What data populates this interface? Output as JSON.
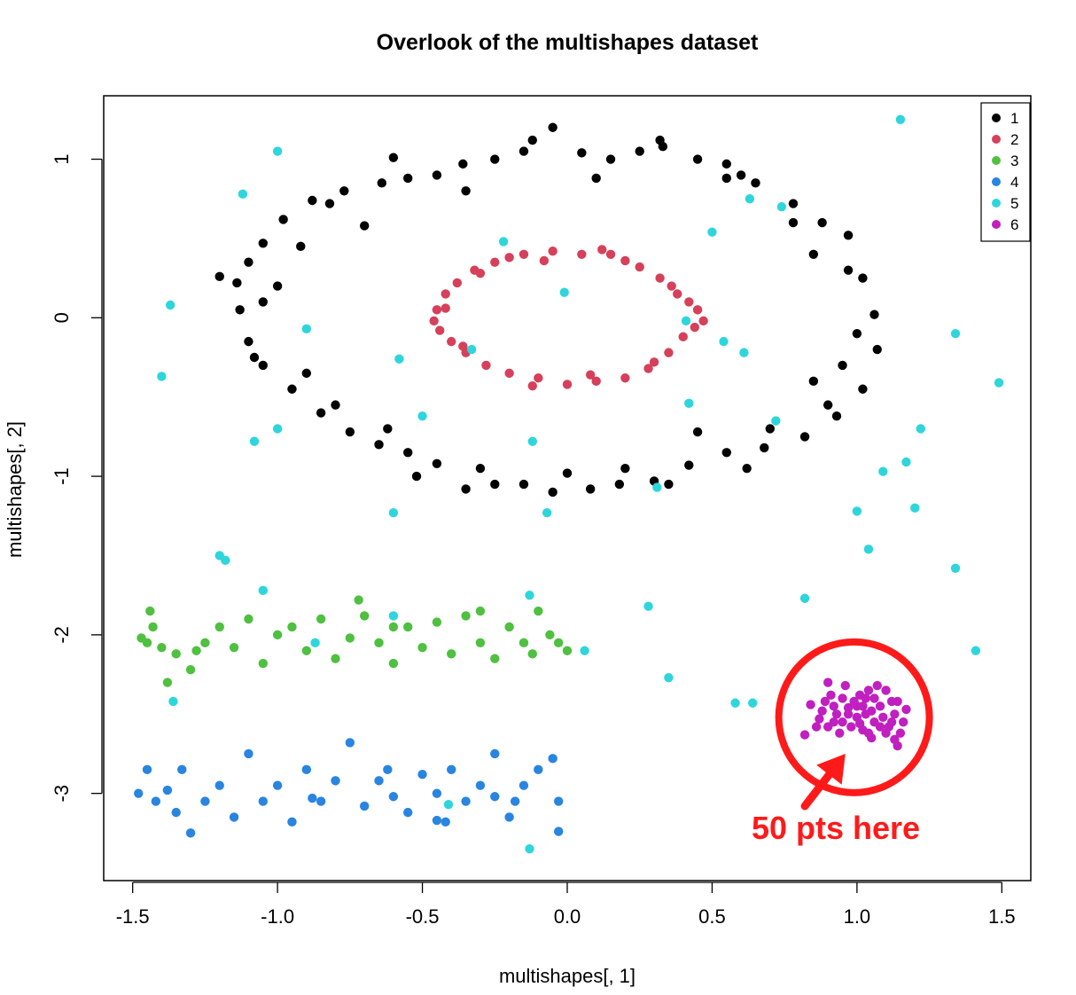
{
  "chart_data": {
    "type": "scatter",
    "title": "Overlook of the multishapes dataset",
    "xlabel": "multishapes[, 1]",
    "ylabel": "multishapes[, 2]",
    "xlim": [
      -1.6,
      1.6
    ],
    "ylim": [
      -3.55,
      1.4
    ],
    "xticks": [
      -1.5,
      -1.0,
      -0.5,
      0.0,
      0.5,
      1.0,
      1.5
    ],
    "xtick_labels": [
      "-1.5",
      "-1.0",
      "-0.5",
      "0.0",
      "0.5",
      "1.0",
      "1.5"
    ],
    "yticks": [
      -3,
      -2,
      -1,
      0,
      1
    ],
    "ytick_labels": [
      "-3",
      "-2",
      "-1",
      "0",
      "1"
    ],
    "grid": false,
    "legend_position": "top-right",
    "series": [
      {
        "name": "1",
        "color": "#000000",
        "points": [
          [
            -1.14,
            0.22
          ],
          [
            -1.05,
            0.47
          ],
          [
            -0.98,
            0.62
          ],
          [
            -0.88,
            0.74
          ],
          [
            -0.77,
            0.8
          ],
          [
            -0.64,
            0.85
          ],
          [
            -0.55,
            0.88
          ],
          [
            -0.45,
            0.9
          ],
          [
            -0.36,
            0.97
          ],
          [
            -0.25,
            1.0
          ],
          [
            -0.15,
            1.05
          ],
          [
            -0.05,
            1.2
          ],
          [
            0.05,
            1.04
          ],
          [
            0.15,
            1.0
          ],
          [
            0.25,
            1.05
          ],
          [
            0.33,
            1.08
          ],
          [
            0.45,
            1.0
          ],
          [
            0.55,
            0.97
          ],
          [
            0.65,
            0.85
          ],
          [
            0.78,
            0.72
          ],
          [
            0.88,
            0.6
          ],
          [
            0.97,
            0.52
          ],
          [
            1.02,
            0.25
          ],
          [
            1.06,
            0.02
          ],
          [
            1.07,
            -0.2
          ],
          [
            1.02,
            -0.45
          ],
          [
            0.93,
            -0.62
          ],
          [
            0.82,
            -0.75
          ],
          [
            0.68,
            -0.82
          ],
          [
            0.55,
            -0.85
          ],
          [
            0.42,
            -0.93
          ],
          [
            0.3,
            -1.03
          ],
          [
            0.18,
            -1.05
          ],
          [
            0.08,
            -1.08
          ],
          [
            -0.05,
            -1.1
          ],
          [
            -0.15,
            -1.05
          ],
          [
            -0.25,
            -1.05
          ],
          [
            -0.35,
            -1.08
          ],
          [
            -0.45,
            -0.92
          ],
          [
            -0.55,
            -0.85
          ],
          [
            -0.65,
            -0.8
          ],
          [
            -0.75,
            -0.72
          ],
          [
            -0.85,
            -0.6
          ],
          [
            -0.95,
            -0.45
          ],
          [
            -1.05,
            -0.3
          ],
          [
            -1.1,
            -0.15
          ],
          [
            -1.13,
            0.05
          ],
          [
            -1.0,
            0.2
          ],
          [
            -0.92,
            0.45
          ],
          [
            -0.7,
            0.58
          ],
          [
            -0.35,
            0.8
          ],
          [
            0.1,
            0.88
          ],
          [
            0.55,
            0.88
          ],
          [
            0.85,
            0.4
          ],
          [
            0.95,
            -0.3
          ],
          [
            0.7,
            -0.7
          ],
          [
            0.2,
            -0.95
          ],
          [
            -0.3,
            -0.95
          ],
          [
            -0.8,
            -0.55
          ],
          [
            -1.05,
            0.1
          ],
          [
            -1.2,
            0.26
          ],
          [
            -1.08,
            -0.25
          ],
          [
            -0.9,
            -0.35
          ],
          [
            -0.62,
            -0.7
          ],
          [
            -0.52,
            -1.0
          ],
          [
            0.0,
            -0.98
          ],
          [
            0.35,
            -1.05
          ],
          [
            0.62,
            -0.95
          ],
          [
            0.9,
            -0.55
          ],
          [
            1.0,
            -0.1
          ],
          [
            0.97,
            0.3
          ],
          [
            0.78,
            0.6
          ],
          [
            0.6,
            0.9
          ],
          [
            0.32,
            1.12
          ],
          [
            -0.12,
            1.12
          ],
          [
            -0.6,
            1.01
          ],
          [
            -0.82,
            0.72
          ],
          [
            -1.1,
            0.35
          ],
          [
            0.85,
            -0.4
          ],
          [
            0.45,
            -0.72
          ]
        ]
      },
      {
        "name": "2",
        "color": "#d6405a",
        "points": [
          [
            -0.45,
            0.05
          ],
          [
            -0.44,
            -0.08
          ],
          [
            -0.42,
            0.15
          ],
          [
            -0.4,
            -0.15
          ],
          [
            -0.38,
            0.22
          ],
          [
            -0.35,
            -0.22
          ],
          [
            -0.32,
            0.3
          ],
          [
            -0.28,
            -0.3
          ],
          [
            -0.25,
            0.35
          ],
          [
            -0.2,
            -0.35
          ],
          [
            -0.15,
            0.4
          ],
          [
            -0.1,
            -0.38
          ],
          [
            -0.05,
            0.42
          ],
          [
            0.0,
            -0.42
          ],
          [
            0.05,
            0.4
          ],
          [
            0.1,
            -0.4
          ],
          [
            0.15,
            0.4
          ],
          [
            0.2,
            -0.38
          ],
          [
            0.25,
            0.32
          ],
          [
            0.28,
            -0.32
          ],
          [
            0.32,
            0.25
          ],
          [
            0.35,
            -0.22
          ],
          [
            0.38,
            0.15
          ],
          [
            0.4,
            -0.12
          ],
          [
            0.45,
            0.05
          ],
          [
            0.47,
            -0.02
          ],
          [
            0.42,
            0.1
          ],
          [
            -0.46,
            -0.02
          ],
          [
            -0.3,
            0.28
          ],
          [
            0.12,
            0.43
          ],
          [
            -0.12,
            -0.43
          ],
          [
            0.3,
            -0.28
          ],
          [
            -0.2,
            0.38
          ],
          [
            0.2,
            0.36
          ],
          [
            -0.36,
            -0.18
          ],
          [
            0.36,
            0.2
          ],
          [
            -0.08,
            0.36
          ],
          [
            0.08,
            -0.36
          ],
          [
            -0.42,
            0.06
          ],
          [
            0.44,
            -0.06
          ]
        ]
      },
      {
        "name": "3",
        "color": "#4fc040",
        "points": [
          [
            -1.47,
            -2.02
          ],
          [
            -1.43,
            -1.95
          ],
          [
            -1.4,
            -2.08
          ],
          [
            -1.38,
            -2.3
          ],
          [
            -1.35,
            -2.12
          ],
          [
            -1.3,
            -2.22
          ],
          [
            -1.25,
            -2.05
          ],
          [
            -1.2,
            -1.95
          ],
          [
            -1.15,
            -2.08
          ],
          [
            -1.1,
            -1.9
          ],
          [
            -1.05,
            -2.18
          ],
          [
            -1.0,
            -2.0
          ],
          [
            -0.95,
            -1.95
          ],
          [
            -0.9,
            -2.1
          ],
          [
            -0.85,
            -1.9
          ],
          [
            -0.8,
            -2.15
          ],
          [
            -0.75,
            -2.02
          ],
          [
            -0.7,
            -1.88
          ],
          [
            -0.65,
            -2.05
          ],
          [
            -0.6,
            -2.18
          ],
          [
            -0.55,
            -1.95
          ],
          [
            -0.5,
            -2.08
          ],
          [
            -0.45,
            -1.92
          ],
          [
            -0.4,
            -2.12
          ],
          [
            -0.35,
            -1.88
          ],
          [
            -0.3,
            -2.05
          ],
          [
            -0.25,
            -2.15
          ],
          [
            -0.2,
            -1.95
          ],
          [
            -0.15,
            -2.05
          ],
          [
            -0.1,
            -1.85
          ],
          [
            -0.06,
            -2.0
          ],
          [
            -0.03,
            -2.05
          ],
          [
            0.0,
            -2.1
          ],
          [
            -1.44,
            -1.85
          ],
          [
            -1.45,
            -2.05
          ],
          [
            -1.28,
            -2.1
          ],
          [
            -0.72,
            -1.78
          ],
          [
            -0.3,
            -1.85
          ],
          [
            -0.12,
            -2.12
          ],
          [
            -0.6,
            -1.95
          ]
        ]
      },
      {
        "name": "4",
        "color": "#2985e0",
        "points": [
          [
            -1.48,
            -3.0
          ],
          [
            -1.45,
            -2.85
          ],
          [
            -1.42,
            -3.05
          ],
          [
            -1.38,
            -2.98
          ],
          [
            -1.33,
            -2.85
          ],
          [
            -1.3,
            -3.25
          ],
          [
            -1.25,
            -3.05
          ],
          [
            -1.2,
            -2.95
          ],
          [
            -1.15,
            -3.15
          ],
          [
            -1.1,
            -2.75
          ],
          [
            -1.05,
            -3.05
          ],
          [
            -1.0,
            -2.95
          ],
          [
            -0.95,
            -3.18
          ],
          [
            -0.9,
            -2.85
          ],
          [
            -0.85,
            -3.05
          ],
          [
            -0.8,
            -2.92
          ],
          [
            -0.75,
            -2.68
          ],
          [
            -0.7,
            -3.08
          ],
          [
            -0.65,
            -2.92
          ],
          [
            -0.6,
            -3.02
          ],
          [
            -0.55,
            -3.12
          ],
          [
            -0.5,
            -2.88
          ],
          [
            -0.45,
            -3.0
          ],
          [
            -0.4,
            -2.85
          ],
          [
            -0.35,
            -3.05
          ],
          [
            -0.3,
            -2.95
          ],
          [
            -0.25,
            -3.02
          ],
          [
            -0.2,
            -3.15
          ],
          [
            -0.15,
            -2.95
          ],
          [
            -0.1,
            -2.85
          ],
          [
            -0.05,
            -2.78
          ],
          [
            -0.03,
            -3.05
          ],
          [
            -0.03,
            -3.24
          ],
          [
            -0.45,
            -3.17
          ],
          [
            -0.25,
            -2.75
          ],
          [
            -1.35,
            -3.12
          ],
          [
            -0.88,
            -3.03
          ],
          [
            -0.62,
            -2.85
          ],
          [
            -0.42,
            -3.18
          ],
          [
            -0.18,
            -3.05
          ]
        ]
      },
      {
        "name": "5",
        "color": "#2ed6dc",
        "points": [
          [
            1.15,
            1.25
          ],
          [
            -1.0,
            1.05
          ],
          [
            -1.12,
            0.78
          ],
          [
            -1.37,
            0.08
          ],
          [
            -1.4,
            -0.37
          ],
          [
            -0.58,
            -0.26
          ],
          [
            -0.5,
            -0.62
          ],
          [
            -1.08,
            -0.78
          ],
          [
            -1.0,
            -0.7
          ],
          [
            -0.9,
            -0.07
          ],
          [
            -0.22,
            0.48
          ],
          [
            -0.01,
            0.16
          ],
          [
            -0.33,
            -0.2
          ],
          [
            -0.12,
            -0.78
          ],
          [
            -0.07,
            -1.23
          ],
          [
            -0.6,
            -1.23
          ],
          [
            -1.2,
            -1.5
          ],
          [
            -1.18,
            -1.53
          ],
          [
            -1.05,
            -1.72
          ],
          [
            -0.6,
            -1.88
          ],
          [
            -0.87,
            -2.05
          ],
          [
            -1.36,
            -2.42
          ],
          [
            -0.13,
            -1.75
          ],
          [
            0.06,
            -2.1
          ],
          [
            0.28,
            -1.82
          ],
          [
            0.35,
            -2.27
          ],
          [
            0.31,
            -1.07
          ],
          [
            0.5,
            0.54
          ],
          [
            0.63,
            0.75
          ],
          [
            0.74,
            0.7
          ],
          [
            0.41,
            -0.02
          ],
          [
            0.54,
            -0.15
          ],
          [
            0.61,
            -0.22
          ],
          [
            0.42,
            -0.54
          ],
          [
            0.72,
            -0.65
          ],
          [
            0.58,
            -2.43
          ],
          [
            0.64,
            -2.43
          ],
          [
            0.82,
            -1.77
          ],
          [
            1.0,
            -1.22
          ],
          [
            1.04,
            -1.46
          ],
          [
            1.09,
            -0.97
          ],
          [
            1.17,
            -0.91
          ],
          [
            1.2,
            -1.2
          ],
          [
            1.22,
            -0.7
          ],
          [
            1.34,
            -0.1
          ],
          [
            1.34,
            -1.58
          ],
          [
            1.41,
            -2.1
          ],
          [
            1.49,
            -0.41
          ],
          [
            -0.41,
            -3.07
          ],
          [
            -0.13,
            -3.35
          ]
        ]
      },
      {
        "name": "6",
        "color": "#c020c0",
        "points": [
          [
            0.9,
            -2.3
          ],
          [
            0.92,
            -2.55
          ],
          [
            0.95,
            -2.4
          ],
          [
            0.97,
            -2.5
          ],
          [
            1.0,
            -2.45
          ],
          [
            1.02,
            -2.6
          ],
          [
            1.04,
            -2.35
          ],
          [
            1.06,
            -2.55
          ],
          [
            1.08,
            -2.45
          ],
          [
            1.1,
            -2.62
          ],
          [
            1.12,
            -2.42
          ],
          [
            1.14,
            -2.7
          ],
          [
            0.88,
            -2.48
          ],
          [
            0.86,
            -2.58
          ],
          [
            0.94,
            -2.62
          ],
          [
            0.96,
            -2.32
          ],
          [
            0.98,
            -2.58
          ],
          [
            1.01,
            -2.38
          ],
          [
            1.03,
            -2.5
          ],
          [
            1.05,
            -2.65
          ],
          [
            1.07,
            -2.32
          ],
          [
            1.09,
            -2.52
          ],
          [
            1.11,
            -2.58
          ],
          [
            1.13,
            -2.5
          ],
          [
            1.15,
            -2.62
          ],
          [
            0.89,
            -2.42
          ],
          [
            0.91,
            -2.38
          ],
          [
            0.93,
            -2.5
          ],
          [
            0.95,
            -2.55
          ],
          [
            0.99,
            -2.42
          ],
          [
            1.0,
            -2.52
          ],
          [
            1.02,
            -2.45
          ],
          [
            1.04,
            -2.62
          ],
          [
            1.06,
            -2.4
          ],
          [
            1.08,
            -2.58
          ],
          [
            1.1,
            -2.35
          ],
          [
            1.12,
            -2.55
          ],
          [
            1.14,
            -2.42
          ],
          [
            1.16,
            -2.55
          ],
          [
            1.17,
            -2.47
          ],
          [
            0.82,
            -2.63
          ],
          [
            0.84,
            -2.44
          ],
          [
            0.87,
            -2.53
          ],
          [
            0.9,
            -2.58
          ],
          [
            0.97,
            -2.46
          ],
          [
            1.01,
            -2.56
          ],
          [
            1.03,
            -2.4
          ],
          [
            1.05,
            -2.48
          ],
          [
            1.13,
            -2.66
          ],
          [
            0.92,
            -2.45
          ]
        ]
      }
    ],
    "annotation": {
      "text": "50 pts here",
      "circle_center": [
        0.99,
        -2.52
      ],
      "circle_radius_x_units": 0.26,
      "arrow_from": [
        0.82,
        -3.08
      ],
      "arrow_to": [
        0.96,
        -2.75
      ],
      "color": "#ff1a1a"
    }
  }
}
